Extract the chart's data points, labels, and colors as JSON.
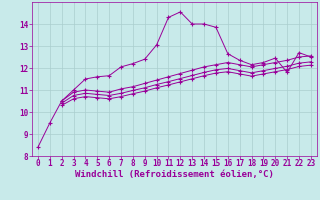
{
  "xlabel": "Windchill (Refroidissement éolien,°C)",
  "background_color": "#c8eaea",
  "line_color": "#990099",
  "grid_color": "#aacece",
  "xlim": [
    -0.5,
    23.5
  ],
  "ylim": [
    8,
    15
  ],
  "xticks": [
    0,
    1,
    2,
    3,
    4,
    5,
    6,
    7,
    8,
    9,
    10,
    11,
    12,
    13,
    14,
    15,
    16,
    17,
    18,
    19,
    20,
    21,
    22,
    23
  ],
  "yticks": [
    8,
    9,
    10,
    11,
    12,
    13,
    14
  ],
  "curve1_x": [
    0,
    1,
    2,
    3,
    4,
    5,
    6,
    7,
    8,
    9,
    10,
    11,
    12,
    13,
    14,
    15,
    16,
    17,
    18,
    19,
    20,
    21,
    22,
    23
  ],
  "curve1_y": [
    8.4,
    9.5,
    10.5,
    11.0,
    11.5,
    11.6,
    11.65,
    12.05,
    12.2,
    12.4,
    13.05,
    14.3,
    14.55,
    14.0,
    14.0,
    13.85,
    12.65,
    12.35,
    12.15,
    12.25,
    12.45,
    11.8,
    12.7,
    12.5
  ],
  "curve2_x": [
    2,
    3,
    4,
    5,
    6,
    7,
    8,
    9,
    10,
    11,
    12,
    13,
    14,
    15,
    16,
    17,
    18,
    19,
    20,
    21,
    22,
    23
  ],
  "curve2_y": [
    10.5,
    10.9,
    11.0,
    10.95,
    10.9,
    11.05,
    11.15,
    11.3,
    11.45,
    11.6,
    11.75,
    11.9,
    12.05,
    12.15,
    12.25,
    12.15,
    12.05,
    12.15,
    12.25,
    12.35,
    12.5,
    12.55
  ],
  "curve3_x": [
    2,
    3,
    4,
    5,
    6,
    7,
    8,
    9,
    10,
    11,
    12,
    13,
    14,
    15,
    16,
    17,
    18,
    19,
    20,
    21,
    22,
    23
  ],
  "curve3_y": [
    10.4,
    10.75,
    10.85,
    10.8,
    10.75,
    10.85,
    10.98,
    11.1,
    11.25,
    11.38,
    11.52,
    11.66,
    11.8,
    11.92,
    11.98,
    11.88,
    11.78,
    11.88,
    11.98,
    12.08,
    12.22,
    12.28
  ],
  "curve4_x": [
    2,
    3,
    4,
    5,
    6,
    7,
    8,
    9,
    10,
    11,
    12,
    13,
    14,
    15,
    16,
    17,
    18,
    19,
    20,
    21,
    22,
    23
  ],
  "curve4_y": [
    10.3,
    10.6,
    10.7,
    10.65,
    10.6,
    10.7,
    10.83,
    10.95,
    11.1,
    11.23,
    11.37,
    11.51,
    11.65,
    11.77,
    11.83,
    11.73,
    11.63,
    11.73,
    11.83,
    11.93,
    12.07,
    12.13
  ],
  "xlabel_fontsize": 6.5,
  "tick_fontsize": 5.5,
  "linewidth": 0.7,
  "markersize": 2.0
}
